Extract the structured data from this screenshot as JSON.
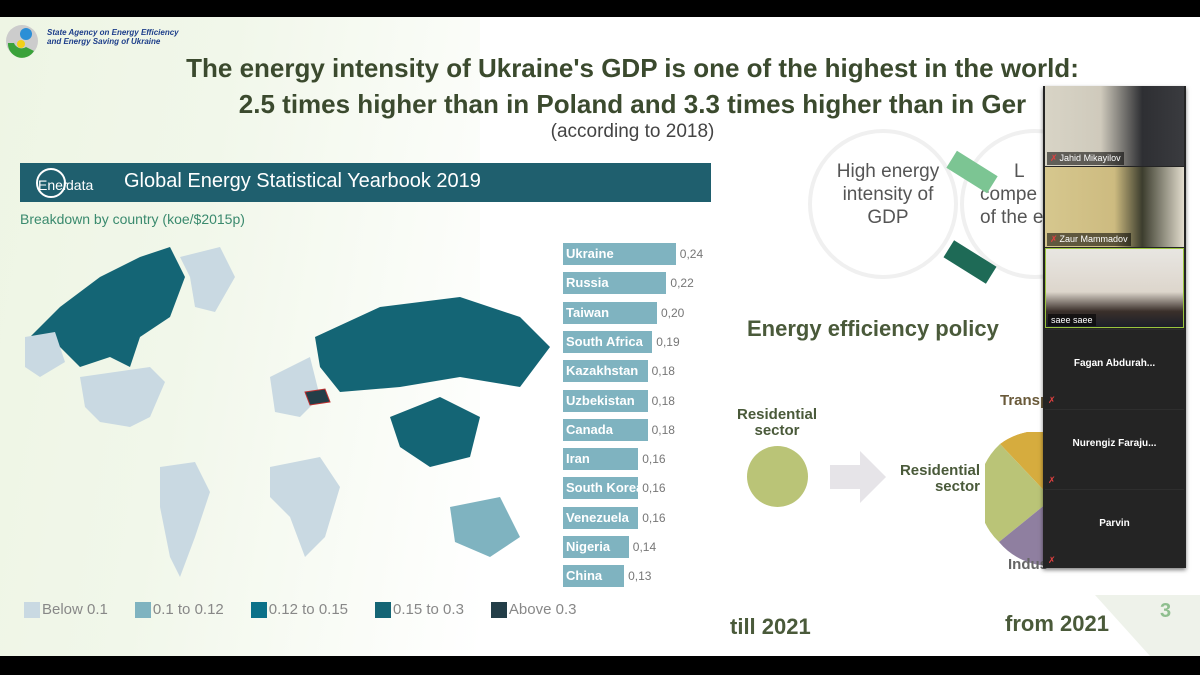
{
  "header": {
    "agency_line1": "State Agency on Energy Efficiency",
    "agency_line2": "and Energy Saving of Ukraine"
  },
  "slide": {
    "title_line1": "The energy intensity of Ukraine's GDP is one of the highest in the world:",
    "title_line2": "2.5 times higher than in Poland and 3.3 times higher than in Ger",
    "subtitle": "(according to 2018)",
    "page_number": "3"
  },
  "enerdata": {
    "brand_pre": "Ener",
    "brand_post": "data",
    "yearbook": "Global Energy Statistical Yearbook 2019",
    "breakdown": "Breakdown by country (koe/$2015p)"
  },
  "chart_data": {
    "type": "bar",
    "orientation": "horizontal",
    "categories": [
      "Ukraine",
      "Russia",
      "Taiwan",
      "South Africa",
      "Kazakhstan",
      "Uzbekistan",
      "Canada",
      "Iran",
      "South Korea",
      "Venezuela",
      "Nigeria",
      "China"
    ],
    "values": [
      0.24,
      0.22,
      0.2,
      0.19,
      0.18,
      0.18,
      0.18,
      0.16,
      0.16,
      0.16,
      0.14,
      0.13
    ],
    "value_labels": [
      "0,24",
      "0,22",
      "0,20",
      "0,19",
      "0,18",
      "0,18",
      "0,18",
      "0,16",
      "0,16",
      "0,16",
      "0,14",
      "0,13"
    ],
    "bar_color": "#7fb3c0"
  },
  "legend": [
    {
      "label": "Below 0.1",
      "color": "#c9d9e2"
    },
    {
      "label": "0.1 to 0.12",
      "color": "#7fb3c0"
    },
    {
      "label": "0.12 to 0.15",
      "color": "#0b7189"
    },
    {
      "label": "0.15 to 0.3",
      "color": "#146575"
    },
    {
      "label": "Above 0.3",
      "color": "#233e48"
    }
  ],
  "cycle": {
    "left": "High energy intensity of GDP",
    "right_partial_1": "L",
    "right_partial_2": "compe",
    "right_partial_3": "of the e"
  },
  "policy": {
    "heading": "Energy efficiency policy",
    "residential_left": "Residential sector",
    "residential_right": "Residential sector",
    "transport": "Transp",
    "industry": "Indus",
    "till": "till 2021",
    "from": "from 2021"
  },
  "participants": [
    {
      "name": "Jahid Mikayilov",
      "muted": true
    },
    {
      "name": "Zaur Mammadov",
      "muted": true
    },
    {
      "name": "saee saee",
      "muted": false
    },
    {
      "name": "Fagan  Abdurah...",
      "muted": true
    },
    {
      "name": "Nurengiz  Faraju...",
      "muted": true
    },
    {
      "name": "Parvin",
      "muted": true
    }
  ]
}
